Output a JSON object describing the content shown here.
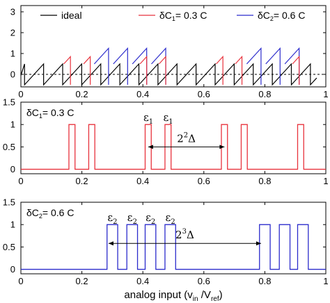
{
  "colors": {
    "ideal": "#000000",
    "dc1": "#e8323c",
    "dc2": "#2b2bcc",
    "frame": "#000000"
  },
  "xlabel": "analog input (v",
  "xlabel_sub_in": "in",
  "xlabel_mid": " /V",
  "xlabel_sub_ref": "ref",
  "xlabel_end": ")",
  "panels": [
    {
      "id": "residue",
      "type": "line",
      "legend": [
        {
          "label": "ideal",
          "color": "#000000",
          "position": "top-left"
        },
        {
          "label_prefix": "δC",
          "label_sub": "1",
          "label_suffix": "= 0.3 C",
          "color": "#e8323c",
          "position": "top-center"
        },
        {
          "label_prefix": "δC",
          "label_sub": "2",
          "label_suffix": "= 0.6 C",
          "color": "#2b2bcc",
          "position": "top-right"
        }
      ],
      "xlim": [
        0,
        1
      ],
      "ylim": [
        -0.6,
        3.3
      ],
      "xticks": [
        "0",
        "0.2",
        "0.4",
        "0.6",
        "0.8",
        "1"
      ],
      "yticks": [
        "0",
        "1",
        "2",
        "3"
      ],
      "reference_line": {
        "y": 0,
        "style": "dashed"
      },
      "ideal_period": 0.0625,
      "ideal_range": [
        -0.5,
        0.5
      ],
      "series": [
        {
          "name": "ideal",
          "note": "sawtooth"
        },
        {
          "name": "δC1 = 0.3 C",
          "spikes_x": [
            0.1625,
            0.2275,
            0.4125,
            0.475,
            0.6625,
            0.725,
            0.9125
          ]
        },
        {
          "name": "δC2 = 0.6 C",
          "spikes_x": [
            0.2875,
            0.35,
            0.4125,
            0.475,
            0.7875,
            0.85,
            0.9125
          ]
        }
      ]
    },
    {
      "id": "error1",
      "type": "line",
      "label_prefix": "δC",
      "label_sub": "1",
      "label_suffix": "= 0.3 C",
      "color": "#e8323c",
      "xlim": [
        0,
        1
      ],
      "ylim": [
        -0.1,
        1.5
      ],
      "xticks": [
        "0",
        "0.2",
        "0.4",
        "0.6",
        "0.8",
        "1"
      ],
      "yticks": [
        "0",
        "0.5",
        "1",
        "1.5"
      ],
      "pulse_width": 0.02,
      "pulses_x": [
        0.1575,
        0.2225,
        0.4075,
        0.4725,
        0.6575,
        0.7225,
        0.9075
      ],
      "annotations": [
        {
          "text": "ε",
          "sub": "1",
          "x": 0.418
        },
        {
          "text": "ε",
          "sub": "1",
          "x": 0.483
        }
      ],
      "span": {
        "from": 0.4175,
        "to": 0.6675,
        "text": "2",
        "sup": "2",
        "suffix": "Δ"
      }
    },
    {
      "id": "error2",
      "type": "line",
      "label_prefix": "δC",
      "label_sub": "2",
      "label_suffix": "= 0.6 C",
      "color": "#2b2bcc",
      "xlim": [
        0,
        1
      ],
      "ylim": [
        -0.1,
        1.5
      ],
      "xticks": [
        "0",
        "0.2",
        "0.4",
        "0.6",
        "0.8",
        "1"
      ],
      "yticks": [
        "0",
        "0.5",
        "1",
        "1.5"
      ],
      "pulses": [
        [
          0.2825,
          0.3175
        ],
        [
          0.3475,
          0.3825
        ],
        [
          0.4075,
          0.4425
        ],
        [
          0.4725,
          0.5075
        ],
        [
          0.7825,
          0.8175
        ],
        [
          0.8475,
          0.8825
        ],
        [
          0.9075,
          0.9425
        ]
      ],
      "annotations": [
        {
          "text": "ε",
          "sub": "2",
          "x": 0.3
        },
        {
          "text": "ε",
          "sub": "2",
          "x": 0.365
        },
        {
          "text": "ε",
          "sub": "2",
          "x": 0.425
        },
        {
          "text": "ε",
          "sub": "2",
          "x": 0.49
        }
      ],
      "span": {
        "from": 0.2875,
        "to": 0.7875,
        "text": "2",
        "sup": "3",
        "suffix": "Δ"
      }
    }
  ],
  "chart_data": [
    {
      "type": "line",
      "title": "",
      "xlabel": "",
      "ylabel": "",
      "xlim": [
        0,
        1
      ],
      "ylim": [
        -0.6,
        3.3
      ],
      "series": [
        {
          "name": "ideal",
          "x": [
            0,
            0.0625,
            0.125,
            0.1875,
            0.25,
            0.3125,
            0.375,
            0.4375,
            0.5,
            0.5625,
            0.625,
            0.6875,
            0.75,
            0.8125,
            0.875,
            0.9375,
            1
          ],
          "values": [
            -0.5,
            0.5,
            0.5,
            0.5,
            0.5,
            0.5,
            0.5,
            0.5,
            0.5,
            0.5,
            0.5,
            0.5,
            0.5,
            0.5,
            0.5,
            0.5,
            0.5
          ]
        },
        {
          "name": "δC1= 0.3 C",
          "x": [
            0.1625,
            0.2275,
            0.4125,
            0.475,
            0.6625,
            0.725,
            0.9125
          ],
          "values": [
            0.8,
            0.8,
            0.8,
            0.8,
            0.8,
            0.8,
            0.8
          ]
        },
        {
          "name": "δC2= 0.6 C",
          "x": [
            0.2875,
            0.35,
            0.4125,
            0.475,
            0.7875,
            0.85,
            0.9125
          ],
          "values": [
            1.1,
            1.1,
            1.1,
            1.1,
            1.1,
            1.1,
            1.1
          ]
        }
      ]
    },
    {
      "type": "line",
      "title": "",
      "xlim": [
        0,
        1
      ],
      "ylim": [
        -0.1,
        1.5
      ],
      "series": [
        {
          "name": "δC1= 0.3 C",
          "pulse_centers": [
            0.1675,
            0.2325,
            0.4175,
            0.4825,
            0.6675,
            0.7325,
            0.9175
          ],
          "pulse_height": 1
        }
      ]
    },
    {
      "type": "line",
      "title": "",
      "xlim": [
        0,
        1
      ],
      "ylim": [
        -0.1,
        1.5
      ],
      "series": [
        {
          "name": "δC2= 0.6 C",
          "pulse_intervals": [
            [
              0.2825,
              0.3175
            ],
            [
              0.3475,
              0.3825
            ],
            [
              0.4075,
              0.4425
            ],
            [
              0.4725,
              0.5075
            ],
            [
              0.7825,
              0.8175
            ],
            [
              0.8475,
              0.8825
            ],
            [
              0.9075,
              0.9425
            ]
          ],
          "pulse_height": 1
        }
      ]
    }
  ]
}
